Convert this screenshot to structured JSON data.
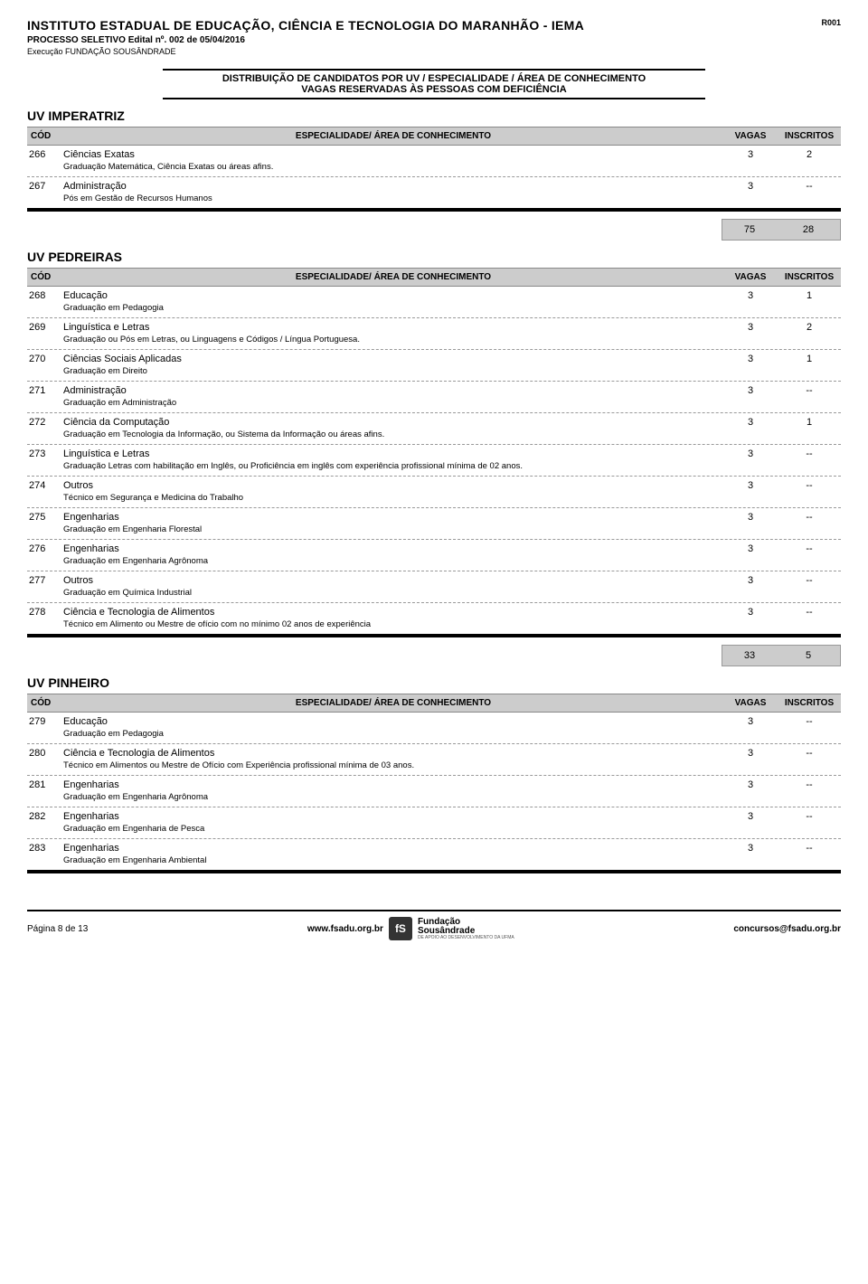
{
  "header": {
    "institution": "INSTITUTO ESTADUAL DE EDUCAÇÃO, CIÊNCIA E TECNOLOGIA DO MARANHÃO - IEMA",
    "r_code": "R001",
    "processo": "PROCESSO SELETIVO Edital nº. 002 de 05/04/2016",
    "execucao": "Execução FUNDAÇÃO SOUSÂNDRADE",
    "dist_line1": "DISTRIBUIÇÃO DE CANDIDATOS POR UV / ESPECIALIDADE / ÁREA DE CONHECIMENTO",
    "dist_line2": "VAGAS RESERVADAS ÀS PESSOAS COM DEFICIÊNCIA"
  },
  "col_labels": {
    "cod": "CÓD",
    "spec": "ESPECIALIDADE/ ÁREA DE CONHECIMENTO",
    "vagas": "VAGAS",
    "inscritos": "INSCRITOS"
  },
  "sections": [
    {
      "title": "UV IMPERATRIZ",
      "rows": [
        {
          "cod": "266",
          "spec": "Ciências Exatas",
          "vagas": "3",
          "insc": "2",
          "sub": "Graduação Matemática, Ciência Exatas ou áreas afins."
        },
        {
          "cod": "267",
          "spec": "Administração",
          "vagas": "3",
          "insc": "--",
          "sub": "Pós em Gestão de Recursos Humanos"
        }
      ],
      "total_vagas": "75",
      "total_insc": "28"
    },
    {
      "title": "UV PEDREIRAS",
      "rows": [
        {
          "cod": "268",
          "spec": "Educação",
          "vagas": "3",
          "insc": "1",
          "sub": "Graduação em Pedagogia"
        },
        {
          "cod": "269",
          "spec": "Linguística e Letras",
          "vagas": "3",
          "insc": "2",
          "sub": "Graduação ou Pós em Letras, ou Linguagens e Códigos / Língua Portuguesa."
        },
        {
          "cod": "270",
          "spec": "Ciências Sociais Aplicadas",
          "vagas": "3",
          "insc": "1",
          "sub": "Graduação em Direito"
        },
        {
          "cod": "271",
          "spec": "Administração",
          "vagas": "3",
          "insc": "--",
          "sub": "Graduação em Administração"
        },
        {
          "cod": "272",
          "spec": "Ciência da Computação",
          "vagas": "3",
          "insc": "1",
          "sub": "Graduação em Tecnologia da Informação, ou Sistema da Informação ou áreas afins."
        },
        {
          "cod": "273",
          "spec": "Linguística e Letras",
          "vagas": "3",
          "insc": "--",
          "sub": "Graduação Letras com habilitação em Inglês, ou Proficiência em inglês com experiência profissional mínima de 02 anos."
        },
        {
          "cod": "274",
          "spec": "Outros",
          "vagas": "3",
          "insc": "--",
          "sub": "Técnico em Segurança e Medicina do Trabalho"
        },
        {
          "cod": "275",
          "spec": "Engenharias",
          "vagas": "3",
          "insc": "--",
          "sub": "Graduação em Engenharia Florestal"
        },
        {
          "cod": "276",
          "spec": "Engenharias",
          "vagas": "3",
          "insc": "--",
          "sub": "Graduação em Engenharia Agrônoma"
        },
        {
          "cod": "277",
          "spec": "Outros",
          "vagas": "3",
          "insc": "--",
          "sub": "Graduação em Química Industrial"
        },
        {
          "cod": "278",
          "spec": "Ciência e Tecnologia de Alimentos",
          "vagas": "3",
          "insc": "--",
          "sub": "Técnico em Alimento ou Mestre de ofício com no mínimo 02 anos de experiência"
        }
      ],
      "total_vagas": "33",
      "total_insc": "5"
    },
    {
      "title": "UV PINHEIRO",
      "rows": [
        {
          "cod": "279",
          "spec": "Educação",
          "vagas": "3",
          "insc": "--",
          "sub": "Graduação em Pedagogia"
        },
        {
          "cod": "280",
          "spec": "Ciência e Tecnologia de Alimentos",
          "vagas": "3",
          "insc": "--",
          "sub": "Técnico em Alimentos ou Mestre de Ofício com Experiência profissional mínima de 03 anos."
        },
        {
          "cod": "281",
          "spec": "Engenharias",
          "vagas": "3",
          "insc": "--",
          "sub": "Graduação em Engenharia Agrônoma"
        },
        {
          "cod": "282",
          "spec": "Engenharias",
          "vagas": "3",
          "insc": "--",
          "sub": "Graduação em Engenharia de Pesca"
        },
        {
          "cod": "283",
          "spec": "Engenharias",
          "vagas": "3",
          "insc": "--",
          "sub": "Graduação em Engenharia Ambiental"
        }
      ],
      "total_vagas": null,
      "total_insc": null
    }
  ],
  "footer": {
    "page": "Página 8 de 13",
    "url": "www.fsadu.org.br",
    "logo_name1": "Fundação",
    "logo_name2": "Sousândrade",
    "logo_sub": "DE APOIO AO DESENVOLVIMENTO DA UFMA",
    "email": "concursos@fsadu.org.br"
  },
  "colors": {
    "header_gray": "#cccccc",
    "border": "#000000",
    "dash": "#999999",
    "text": "#000000"
  }
}
